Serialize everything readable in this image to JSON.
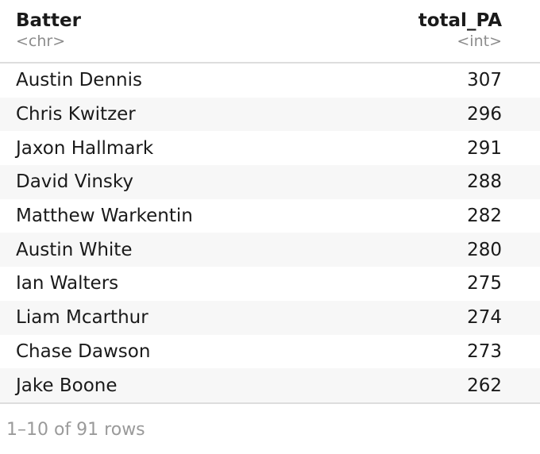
{
  "table": {
    "columns": [
      {
        "name": "Batter",
        "type": "<chr>"
      },
      {
        "name": "total_PA",
        "type": "<int>"
      }
    ],
    "rows": [
      {
        "batter": "Austin Dennis",
        "total_pa": "307"
      },
      {
        "batter": "Chris Kwitzer",
        "total_pa": "296"
      },
      {
        "batter": "Jaxon Hallmark",
        "total_pa": "291"
      },
      {
        "batter": "David Vinsky",
        "total_pa": "288"
      },
      {
        "batter": "Matthew Warkentin",
        "total_pa": "282"
      },
      {
        "batter": "Austin White",
        "total_pa": "280"
      },
      {
        "batter": "Ian Walters",
        "total_pa": "275"
      },
      {
        "batter": "Liam Mcarthur",
        "total_pa": "274"
      },
      {
        "batter": "Chase Dawson",
        "total_pa": "273"
      },
      {
        "batter": "Jake Boone",
        "total_pa": "262"
      }
    ]
  },
  "pagination": {
    "summary": "1–10 of 91 rows"
  },
  "colors": {
    "striped_row": "#f7f7f7",
    "border": "#dddddd",
    "muted_text": "#8c8c8c"
  }
}
